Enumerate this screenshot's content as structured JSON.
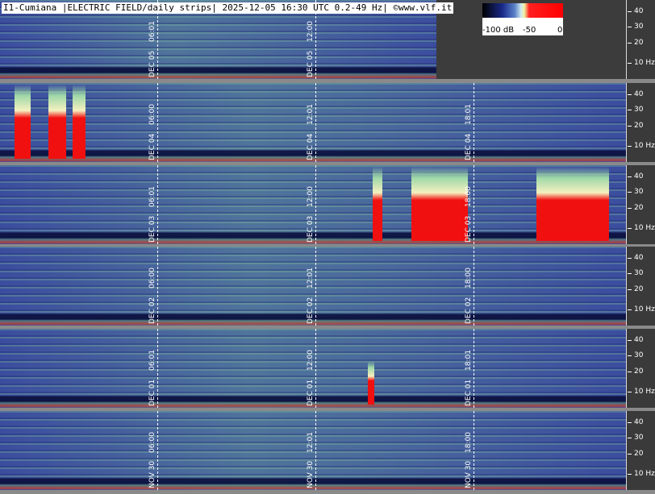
{
  "header": {
    "title": "I1-Cumiana |ELECTRIC FIELD/daily strips| 2025-12-05 16:30 UTC 0.2-49 Hz| ©www.vlf.it"
  },
  "colorbar": {
    "labels": [
      "-100 dB",
      "-50",
      "0"
    ]
  },
  "strips": [
    {
      "markers": [
        {
          "time": "06:01",
          "date": "DEC 05"
        },
        {
          "time": "12:00",
          "date": "DEC 05"
        }
      ],
      "freq_ticks": [
        "40",
        "30",
        "20",
        "10 Hz"
      ]
    },
    {
      "markers": [
        {
          "time": "06:00",
          "date": "DEC 04"
        },
        {
          "time": "12:01",
          "date": "DEC 04"
        },
        {
          "time": "18:01",
          "date": "DEC 04"
        }
      ],
      "freq_ticks": [
        "40",
        "30",
        "20",
        "10 Hz"
      ]
    },
    {
      "markers": [
        {
          "time": "06:01",
          "date": "DEC 03"
        },
        {
          "time": "12:00",
          "date": "DEC 03"
        },
        {
          "time": "18:00",
          "date": "DEC 03"
        }
      ],
      "freq_ticks": [
        "40",
        "30",
        "20",
        "10 Hz"
      ]
    },
    {
      "markers": [
        {
          "time": "06:00",
          "date": "DEC 02"
        },
        {
          "time": "12:01",
          "date": "DEC 02"
        },
        {
          "time": "18:00",
          "date": "DEC 02"
        }
      ],
      "freq_ticks": [
        "40",
        "30",
        "20",
        "10 Hz"
      ]
    },
    {
      "markers": [
        {
          "time": "06:01",
          "date": "DEC 01"
        },
        {
          "time": "12:00",
          "date": "DEC 01"
        },
        {
          "time": "18:01",
          "date": "DEC 01"
        }
      ],
      "freq_ticks": [
        "40",
        "30",
        "20",
        "10 Hz"
      ]
    },
    {
      "markers": [
        {
          "time": "06:00",
          "date": "NOV 30"
        },
        {
          "time": "12:01",
          "date": "NOV 30"
        },
        {
          "time": "18:00",
          "date": "NOV 30"
        }
      ],
      "freq_ticks": [
        "40",
        "30",
        "20",
        "10 Hz"
      ]
    }
  ]
}
